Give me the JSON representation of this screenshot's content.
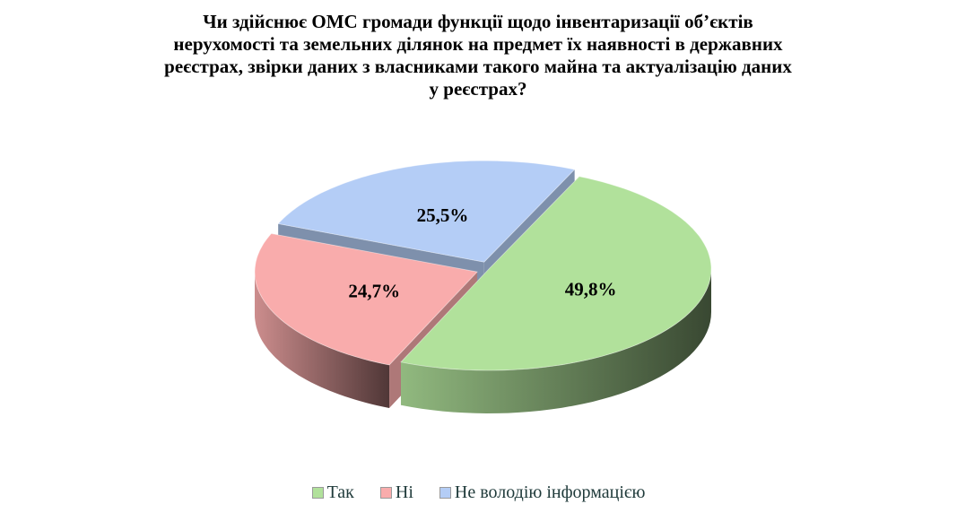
{
  "chart_data": {
    "type": "pie",
    "style": "3d-exploded",
    "title": "Чи здійснює ОМС громади функції щодо інвентаризації об’єктів нерухомості та земельних ділянок на предмет їх наявності в державних реєстрах, звірки даних з власниками такого майна та актуалізацію даних у реєстрах?",
    "title_lines": [
      "Чи здійснює ОМС громади функції щодо інвентаризації об’єктів",
      "нерухомості та земельних ділянок на предмет їх наявності в державних",
      "реєстрах, звірки даних з власниками такого майна та актуалізацію даних",
      "у реєстрах?"
    ],
    "legend_position": "bottom",
    "slices": [
      {
        "name": "Так",
        "value": 49.8,
        "label": "49,8%",
        "color": "#b1e19b",
        "exploded": false
      },
      {
        "name": "Ні",
        "value": 24.7,
        "label": "24,7%",
        "color": "#f9acac",
        "exploded": true
      },
      {
        "name": "Не володію інформацією",
        "value": 25.5,
        "label": "25,5%",
        "color": "#b4cdf6",
        "exploded": true
      }
    ]
  }
}
